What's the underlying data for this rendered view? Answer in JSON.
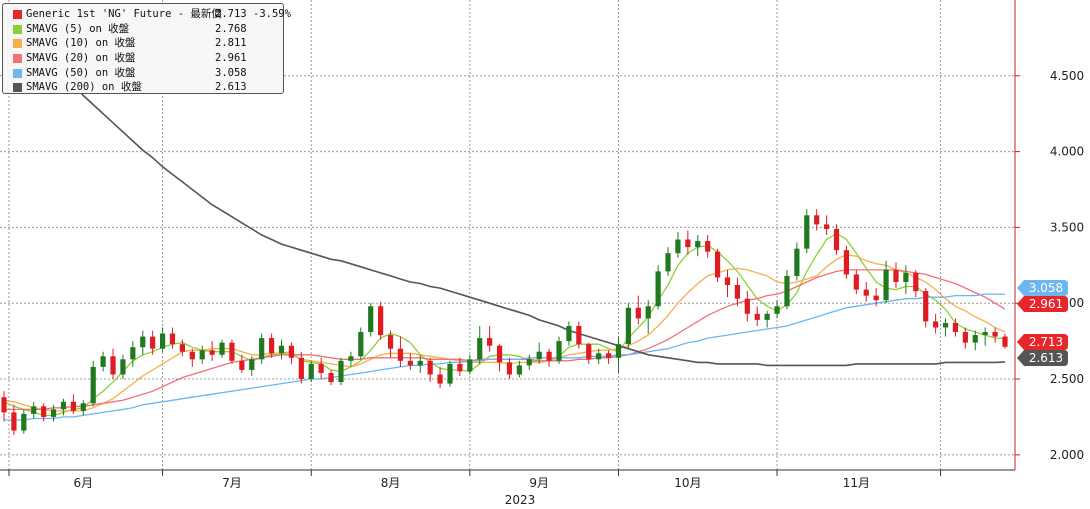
{
  "legend": {
    "items": [
      {
        "name": "Generic 1st 'NG' Future - 最新價",
        "value": "2.713",
        "change": "-3.59%",
        "color": "#e8252b"
      },
      {
        "name": "SMAVG (5)  on 收盤",
        "value": "2.768",
        "color": "#8ccf3a"
      },
      {
        "name": "SMAVG (10)  on 收盤",
        "value": "2.811",
        "color": "#f5b04c"
      },
      {
        "name": "SMAVG (20)  on 收盤",
        "value": "2.961",
        "color": "#f2707a"
      },
      {
        "name": "SMAVG (50)  on 收盤",
        "value": "3.058",
        "color": "#6db6ef"
      },
      {
        "name": "SMAVG (200)  on 收盤",
        "value": "2.613",
        "color": "#555555"
      }
    ]
  },
  "chart_data": {
    "type": "candlestick",
    "ylim": [
      1.9,
      5.0
    ],
    "y_ticks": [
      "4.500",
      "4.000",
      "3.500",
      "3.000",
      "2.500",
      "2.000"
    ],
    "x_ticks": [
      "6月",
      "7月",
      "8月",
      "9月",
      "10月",
      "11月"
    ],
    "x_year_label": "2023",
    "grid": true,
    "colors": {
      "up": "#1f7a1f",
      "down": "#e01b22"
    },
    "ohlc": [
      [
        2.38,
        2.42,
        2.22,
        2.28
      ],
      [
        2.28,
        2.33,
        2.13,
        2.16
      ],
      [
        2.16,
        2.3,
        2.14,
        2.27
      ],
      [
        2.27,
        2.35,
        2.24,
        2.32
      ],
      [
        2.32,
        2.34,
        2.22,
        2.25
      ],
      [
        2.25,
        2.33,
        2.22,
        2.3
      ],
      [
        2.3,
        2.37,
        2.26,
        2.35
      ],
      [
        2.35,
        2.4,
        2.27,
        2.29
      ],
      [
        2.29,
        2.36,
        2.26,
        2.34
      ],
      [
        2.34,
        2.62,
        2.32,
        2.58
      ],
      [
        2.58,
        2.68,
        2.55,
        2.65
      ],
      [
        2.65,
        2.7,
        2.5,
        2.53
      ],
      [
        2.53,
        2.66,
        2.5,
        2.63
      ],
      [
        2.63,
        2.75,
        2.58,
        2.71
      ],
      [
        2.71,
        2.82,
        2.66,
        2.78
      ],
      [
        2.78,
        2.82,
        2.66,
        2.7
      ],
      [
        2.7,
        2.84,
        2.68,
        2.8
      ],
      [
        2.8,
        2.84,
        2.7,
        2.73
      ],
      [
        2.73,
        2.76,
        2.65,
        2.68
      ],
      [
        2.68,
        2.7,
        2.58,
        2.63
      ],
      [
        2.63,
        2.72,
        2.6,
        2.69
      ],
      [
        2.69,
        2.75,
        2.62,
        2.66
      ],
      [
        2.66,
        2.76,
        2.64,
        2.74
      ],
      [
        2.74,
        2.76,
        2.6,
        2.62
      ],
      [
        2.62,
        2.66,
        2.54,
        2.56
      ],
      [
        2.56,
        2.65,
        2.52,
        2.63
      ],
      [
        2.63,
        2.8,
        2.6,
        2.77
      ],
      [
        2.77,
        2.8,
        2.64,
        2.67
      ],
      [
        2.67,
        2.76,
        2.63,
        2.72
      ],
      [
        2.72,
        2.74,
        2.6,
        2.64
      ],
      [
        2.64,
        2.68,
        2.47,
        2.5
      ],
      [
        2.5,
        2.62,
        2.48,
        2.6
      ],
      [
        2.6,
        2.64,
        2.5,
        2.54
      ],
      [
        2.54,
        2.56,
        2.46,
        2.48
      ],
      [
        2.48,
        2.64,
        2.46,
        2.62
      ],
      [
        2.62,
        2.68,
        2.58,
        2.65
      ],
      [
        2.65,
        2.84,
        2.63,
        2.81
      ],
      [
        2.81,
        3.0,
        2.78,
        2.98
      ],
      [
        2.98,
        3.01,
        2.76,
        2.79
      ],
      [
        2.79,
        2.82,
        2.64,
        2.7
      ],
      [
        2.7,
        2.78,
        2.58,
        2.62
      ],
      [
        2.62,
        2.67,
        2.56,
        2.59
      ],
      [
        2.59,
        2.66,
        2.54,
        2.62
      ],
      [
        2.62,
        2.64,
        2.48,
        2.53
      ],
      [
        2.53,
        2.58,
        2.44,
        2.47
      ],
      [
        2.47,
        2.62,
        2.45,
        2.6
      ],
      [
        2.6,
        2.64,
        2.52,
        2.55
      ],
      [
        2.55,
        2.66,
        2.53,
        2.63
      ],
      [
        2.63,
        2.85,
        2.6,
        2.77
      ],
      [
        2.77,
        2.85,
        2.68,
        2.72
      ],
      [
        2.72,
        2.73,
        2.55,
        2.61
      ],
      [
        2.61,
        2.64,
        2.5,
        2.53
      ],
      [
        2.53,
        2.62,
        2.51,
        2.59
      ],
      [
        2.59,
        2.66,
        2.56,
        2.63
      ],
      [
        2.63,
        2.74,
        2.6,
        2.68
      ],
      [
        2.68,
        2.7,
        2.58,
        2.62
      ],
      [
        2.62,
        2.78,
        2.6,
        2.75
      ],
      [
        2.75,
        2.88,
        2.72,
        2.85
      ],
      [
        2.85,
        2.88,
        2.7,
        2.73
      ],
      [
        2.73,
        2.74,
        2.6,
        2.63
      ],
      [
        2.63,
        2.7,
        2.6,
        2.67
      ],
      [
        2.67,
        2.69,
        2.6,
        2.64
      ],
      [
        2.64,
        2.78,
        2.54,
        2.73
      ],
      [
        2.73,
        3.0,
        2.7,
        2.97
      ],
      [
        2.97,
        3.05,
        2.86,
        2.9
      ],
      [
        2.9,
        3.02,
        2.8,
        2.98
      ],
      [
        2.98,
        3.25,
        2.96,
        3.21
      ],
      [
        3.21,
        3.37,
        3.18,
        3.33
      ],
      [
        3.33,
        3.47,
        3.3,
        3.42
      ],
      [
        3.42,
        3.48,
        3.32,
        3.37
      ],
      [
        3.37,
        3.45,
        3.31,
        3.41
      ],
      [
        3.41,
        3.45,
        3.3,
        3.34
      ],
      [
        3.34,
        3.36,
        3.14,
        3.17
      ],
      [
        3.17,
        3.22,
        3.04,
        3.12
      ],
      [
        3.12,
        3.17,
        2.98,
        3.03
      ],
      [
        3.03,
        3.08,
        2.88,
        2.93
      ],
      [
        2.93,
        2.98,
        2.85,
        2.89
      ],
      [
        2.89,
        2.95,
        2.84,
        2.93
      ],
      [
        2.93,
        3.02,
        2.9,
        2.98
      ],
      [
        2.98,
        3.22,
        2.96,
        3.18
      ],
      [
        3.18,
        3.4,
        3.15,
        3.36
      ],
      [
        3.36,
        3.62,
        3.33,
        3.58
      ],
      [
        3.58,
        3.62,
        3.48,
        3.52
      ],
      [
        3.52,
        3.58,
        3.45,
        3.49
      ],
      [
        3.49,
        3.52,
        3.32,
        3.35
      ],
      [
        3.35,
        3.38,
        3.16,
        3.19
      ],
      [
        3.19,
        3.22,
        3.06,
        3.09
      ],
      [
        3.09,
        3.14,
        3.01,
        3.05
      ],
      [
        3.05,
        3.1,
        2.98,
        3.02
      ],
      [
        3.02,
        3.28,
        3.0,
        3.22
      ],
      [
        3.22,
        3.27,
        3.1,
        3.14
      ],
      [
        3.14,
        3.25,
        3.06,
        3.2
      ],
      [
        3.2,
        3.22,
        3.04,
        3.08
      ],
      [
        3.08,
        3.1,
        2.84,
        2.88
      ],
      [
        2.88,
        2.93,
        2.8,
        2.84
      ],
      [
        2.84,
        2.9,
        2.78,
        2.87
      ],
      [
        2.87,
        2.9,
        2.78,
        2.81
      ],
      [
        2.81,
        2.84,
        2.7,
        2.74
      ],
      [
        2.74,
        2.82,
        2.69,
        2.79
      ],
      [
        2.79,
        2.84,
        2.72,
        2.81
      ],
      [
        2.81,
        2.84,
        2.74,
        2.78
      ],
      [
        2.78,
        2.8,
        2.7,
        2.713
      ]
    ],
    "series": [
      {
        "name": "SMAVG (5)  on 收盤",
        "color": "#8ccf3a",
        "values": [
          2.35,
          2.32,
          2.3,
          2.28,
          2.26,
          2.26,
          2.28,
          2.3,
          2.31,
          2.37,
          2.42,
          2.48,
          2.55,
          2.62,
          2.66,
          2.68,
          2.71,
          2.73,
          2.74,
          2.71,
          2.69,
          2.68,
          2.68,
          2.68,
          2.65,
          2.62,
          2.64,
          2.66,
          2.67,
          2.68,
          2.62,
          2.61,
          2.6,
          2.56,
          2.55,
          2.58,
          2.62,
          2.69,
          2.77,
          2.8,
          2.78,
          2.74,
          2.66,
          2.61,
          2.57,
          2.56,
          2.56,
          2.55,
          2.6,
          2.65,
          2.66,
          2.66,
          2.65,
          2.62,
          2.61,
          2.62,
          2.65,
          2.71,
          2.73,
          2.73,
          2.73,
          2.7,
          2.68,
          2.77,
          2.84,
          2.91,
          3.02,
          3.12,
          3.25,
          3.33,
          3.37,
          3.38,
          3.34,
          3.28,
          3.21,
          3.12,
          3.03,
          2.98,
          2.95,
          2.99,
          3.07,
          3.21,
          3.32,
          3.42,
          3.46,
          3.42,
          3.33,
          3.23,
          3.14,
          3.1,
          3.09,
          3.11,
          3.11,
          3.06,
          3.02,
          2.96,
          2.87,
          2.83,
          2.81,
          2.79,
          2.77,
          2.768
        ]
      },
      {
        "name": "SMAVG (10)  on 收盤",
        "color": "#f5b04c",
        "values": [
          2.36,
          2.35,
          2.33,
          2.31,
          2.3,
          2.29,
          2.29,
          2.29,
          2.29,
          2.31,
          2.34,
          2.37,
          2.42,
          2.47,
          2.52,
          2.56,
          2.6,
          2.64,
          2.68,
          2.69,
          2.69,
          2.7,
          2.7,
          2.7,
          2.68,
          2.66,
          2.66,
          2.67,
          2.67,
          2.66,
          2.63,
          2.62,
          2.61,
          2.6,
          2.59,
          2.58,
          2.6,
          2.63,
          2.66,
          2.67,
          2.67,
          2.67,
          2.66,
          2.65,
          2.64,
          2.63,
          2.62,
          2.61,
          2.61,
          2.61,
          2.61,
          2.6,
          2.61,
          2.61,
          2.61,
          2.62,
          2.64,
          2.66,
          2.67,
          2.68,
          2.69,
          2.69,
          2.7,
          2.72,
          2.75,
          2.79,
          2.85,
          2.92,
          3.0,
          3.07,
          3.13,
          3.18,
          3.2,
          3.22,
          3.23,
          3.22,
          3.2,
          3.18,
          3.14,
          3.13,
          3.14,
          3.16,
          3.18,
          3.24,
          3.29,
          3.32,
          3.31,
          3.28,
          3.26,
          3.25,
          3.22,
          3.2,
          3.17,
          3.14,
          3.09,
          3.03,
          2.98,
          2.95,
          2.91,
          2.88,
          2.84,
          2.811
        ]
      },
      {
        "name": "SMAVG (20)  on 收盤",
        "color": "#f2707a",
        "values": [
          2.3,
          2.3,
          2.3,
          2.3,
          2.3,
          2.31,
          2.31,
          2.32,
          2.32,
          2.33,
          2.34,
          2.35,
          2.36,
          2.38,
          2.4,
          2.42,
          2.45,
          2.48,
          2.51,
          2.53,
          2.55,
          2.57,
          2.59,
          2.61,
          2.62,
          2.63,
          2.64,
          2.65,
          2.66,
          2.66,
          2.66,
          2.66,
          2.65,
          2.64,
          2.63,
          2.63,
          2.63,
          2.64,
          2.64,
          2.64,
          2.64,
          2.64,
          2.64,
          2.63,
          2.63,
          2.63,
          2.63,
          2.62,
          2.63,
          2.63,
          2.63,
          2.63,
          2.63,
          2.63,
          2.62,
          2.62,
          2.62,
          2.62,
          2.63,
          2.63,
          2.64,
          2.64,
          2.65,
          2.66,
          2.68,
          2.7,
          2.73,
          2.76,
          2.8,
          2.84,
          2.88,
          2.92,
          2.95,
          2.98,
          3.0,
          3.02,
          3.03,
          3.05,
          3.06,
          3.08,
          3.11,
          3.14,
          3.17,
          3.19,
          3.21,
          3.22,
          3.22,
          3.22,
          3.22,
          3.22,
          3.22,
          3.21,
          3.2,
          3.19,
          3.17,
          3.15,
          3.13,
          3.1,
          3.07,
          3.04,
          3.0,
          2.961
        ]
      },
      {
        "name": "SMAVG (50)  on 收盤",
        "color": "#6db6ef",
        "values": [
          2.23,
          2.23,
          2.23,
          2.24,
          2.24,
          2.24,
          2.25,
          2.25,
          2.26,
          2.27,
          2.28,
          2.29,
          2.3,
          2.31,
          2.33,
          2.34,
          2.35,
          2.36,
          2.37,
          2.38,
          2.39,
          2.4,
          2.41,
          2.42,
          2.43,
          2.44,
          2.45,
          2.46,
          2.47,
          2.48,
          2.49,
          2.5,
          2.5,
          2.51,
          2.52,
          2.53,
          2.54,
          2.55,
          2.56,
          2.57,
          2.58,
          2.59,
          2.59,
          2.6,
          2.6,
          2.61,
          2.61,
          2.62,
          2.62,
          2.63,
          2.63,
          2.63,
          2.63,
          2.64,
          2.64,
          2.64,
          2.64,
          2.64,
          2.64,
          2.65,
          2.65,
          2.65,
          2.66,
          2.66,
          2.67,
          2.68,
          2.69,
          2.7,
          2.72,
          2.74,
          2.75,
          2.77,
          2.78,
          2.79,
          2.8,
          2.81,
          2.82,
          2.83,
          2.84,
          2.85,
          2.87,
          2.89,
          2.91,
          2.93,
          2.95,
          2.97,
          2.98,
          2.99,
          3.0,
          3.01,
          3.02,
          3.03,
          3.03,
          3.04,
          3.04,
          3.04,
          3.05,
          3.05,
          3.05,
          3.06,
          3.06,
          3.058
        ]
      },
      {
        "name": "SMAVG (200)  on 收盤",
        "color": "#555555",
        "values": [
          4.94,
          4.86,
          4.78,
          4.71,
          4.64,
          4.57,
          4.51,
          4.44,
          4.37,
          4.31,
          4.25,
          4.19,
          4.13,
          4.07,
          4.01,
          3.96,
          3.9,
          3.85,
          3.8,
          3.75,
          3.7,
          3.65,
          3.61,
          3.57,
          3.53,
          3.49,
          3.45,
          3.42,
          3.39,
          3.37,
          3.35,
          3.33,
          3.31,
          3.29,
          3.28,
          3.26,
          3.24,
          3.22,
          3.2,
          3.18,
          3.16,
          3.14,
          3.13,
          3.11,
          3.1,
          3.08,
          3.06,
          3.04,
          3.02,
          3.0,
          2.98,
          2.96,
          2.94,
          2.92,
          2.89,
          2.87,
          2.85,
          2.82,
          2.8,
          2.78,
          2.76,
          2.74,
          2.72,
          2.7,
          2.68,
          2.66,
          2.65,
          2.64,
          2.63,
          2.62,
          2.61,
          2.61,
          2.6,
          2.6,
          2.6,
          2.6,
          2.6,
          2.59,
          2.59,
          2.59,
          2.59,
          2.59,
          2.59,
          2.59,
          2.59,
          2.59,
          2.6,
          2.6,
          2.6,
          2.6,
          2.6,
          2.6,
          2.6,
          2.6,
          2.6,
          2.61,
          2.61,
          2.61,
          2.61,
          2.61,
          2.61,
          2.613
        ]
      }
    ],
    "last_value_tags": [
      {
        "label": "3.058",
        "value": 3.058,
        "color": "#6db6ef"
      },
      {
        "label": "2.961",
        "value": 2.961,
        "color": "#e8252b"
      },
      {
        "label": "2.713",
        "value": 2.713,
        "color": "#e8252b"
      },
      {
        "label": "2.613",
        "value": 2.613,
        "color": "#555555"
      }
    ]
  }
}
